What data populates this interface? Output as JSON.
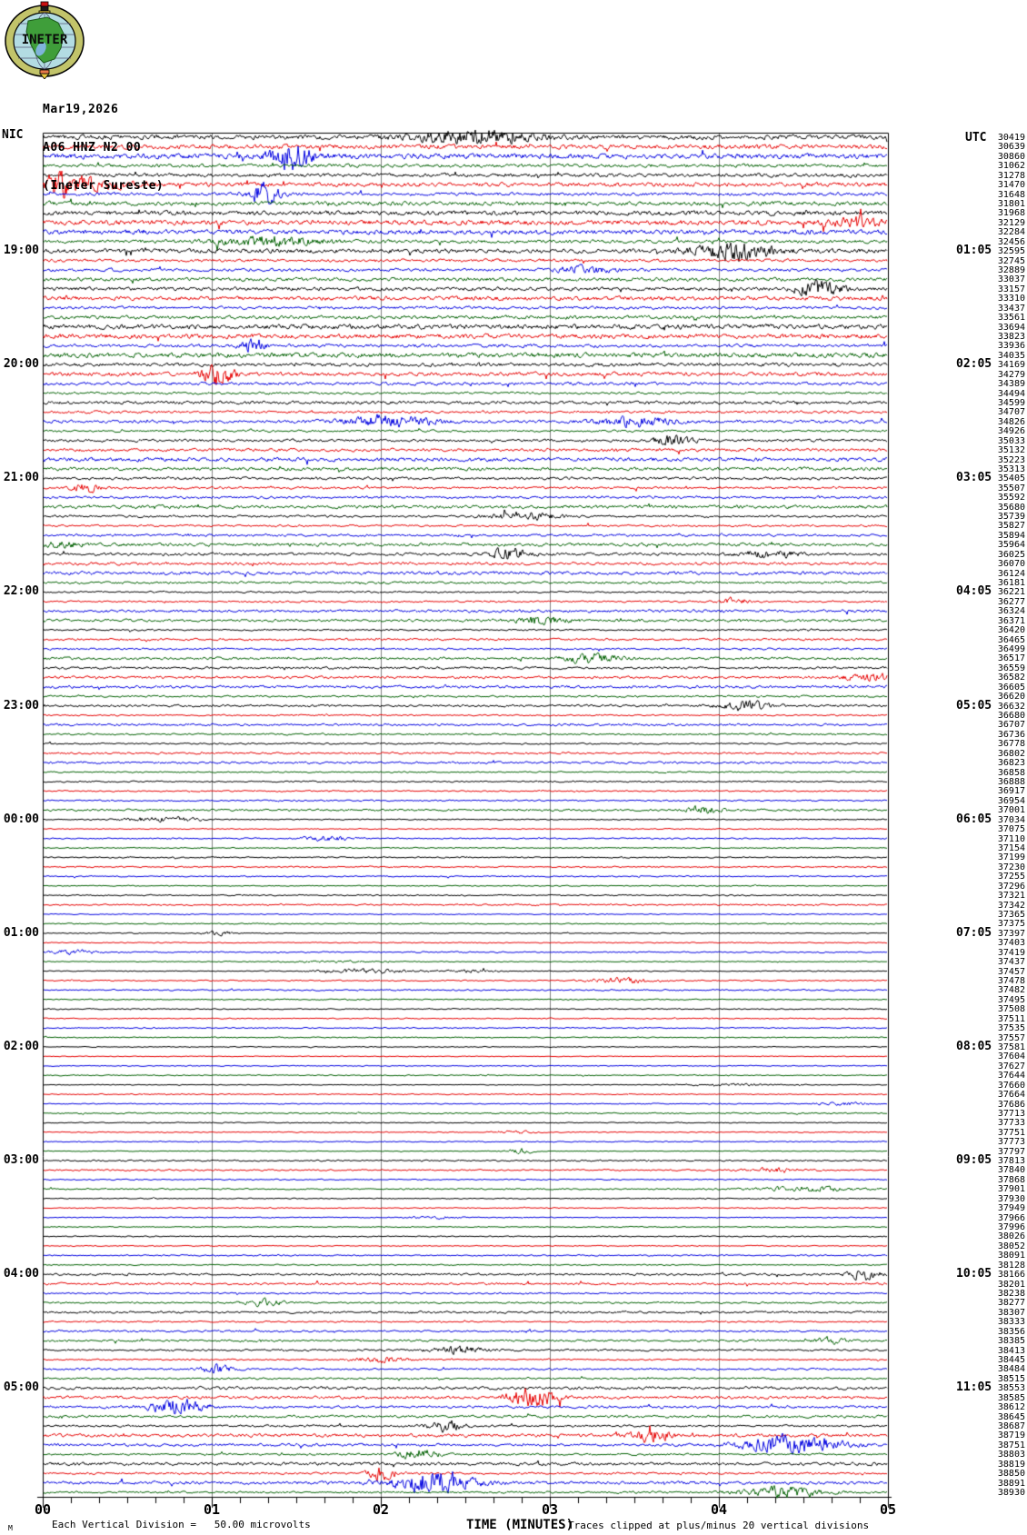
{
  "logo": {
    "label": "INETER",
    "ring_color": "#c2c46a",
    "globe_color": "#b3dce3",
    "land_color": "#3f9e3a",
    "lake_color": "#7fb4da",
    "flag_red": "#cc1111",
    "flag_black": "#1a1a1a",
    "pin_color": "#e8c83c"
  },
  "header": {
    "date": "Mar19,2026",
    "station": "A06 HNZ N2 00",
    "network": "(Ineter Sureste)"
  },
  "axes": {
    "left_header": "NIC",
    "right_header": "UTC"
  },
  "chart_data": {
    "type": "line",
    "subtype": "helicorder-seismogram",
    "title": "A06 HNZ N2 00 (Ineter Sureste) Mar19,2026",
    "xlabel": "TIME (MINUTES)",
    "x_ticks": [
      "00",
      "01",
      "02",
      "03",
      "04",
      "05"
    ],
    "x_range_minutes": [
      0,
      5
    ],
    "minor_ticks_per_division": 5,
    "minutes_per_trace": 5,
    "traces_per_hour": 12,
    "trace_count": 144,
    "trace_color_cycle": [
      "#000000",
      "#e60000",
      "#0000e0",
      "#006000"
    ],
    "grid_color": "#808080",
    "grid_minutes": [
      1,
      2,
      3,
      4
    ],
    "hour_label_first_row": 13,
    "hour_label_step": 12,
    "left_time_labels": [
      "19:00",
      "20:00",
      "21:00",
      "22:00",
      "23:00",
      "00:00",
      "01:00",
      "02:00",
      "03:00",
      "04:00",
      "05:00"
    ],
    "right_time_labels": [
      "01:05",
      "02:05",
      "03:05",
      "04:05",
      "05:05",
      "06:05",
      "07:05",
      "08:05",
      "09:05",
      "10:05",
      "11:05"
    ],
    "trace_values": [
      30419,
      30639,
      30860,
      31062,
      31278,
      31470,
      31648,
      31801,
      31968,
      32129,
      32284,
      32456,
      32595,
      32745,
      32889,
      33037,
      33157,
      33310,
      33437,
      33561,
      33694,
      33823,
      33936,
      34035,
      34169,
      34279,
      34389,
      34494,
      34599,
      34707,
      34826,
      34926,
      35033,
      35132,
      35223,
      35313,
      35405,
      35507,
      35592,
      35680,
      35739,
      35827,
      35894,
      35964,
      36025,
      36070,
      36124,
      36181,
      36221,
      36277,
      36324,
      36371,
      36420,
      36465,
      36499,
      36517,
      36559,
      36582,
      36605,
      36620,
      36632,
      36680,
      36707,
      36736,
      36778,
      36802,
      36823,
      36858,
      36888,
      36917,
      36954,
      37001,
      37034,
      37075,
      37110,
      37154,
      37199,
      37230,
      37255,
      37296,
      37321,
      37342,
      37365,
      37375,
      37397,
      37403,
      37419,
      37437,
      37457,
      37478,
      37482,
      37495,
      37508,
      37511,
      37535,
      37557,
      37581,
      37604,
      37627,
      37644,
      37660,
      37664,
      37686,
      37713,
      37733,
      37751,
      37773,
      37797,
      37813,
      37840,
      37868,
      37901,
      37930,
      37949,
      37966,
      37996,
      38026,
      38052,
      38091,
      38128,
      38166,
      38201,
      38238,
      38277,
      38307,
      38333,
      38356,
      38385,
      38413,
      38445,
      38484,
      38515,
      38553,
      38585,
      38612,
      38645,
      38687,
      38719,
      38751,
      38803,
      38819,
      38850,
      38891,
      38930
    ]
  },
  "footer": {
    "corner_mark": "M",
    "scale_note": "Each Vertical Division =   50.00 microvolts",
    "axis_title": "TIME (MINUTES)",
    "clip_note": "Traces clipped at plus/minus 20 vertical divisions"
  }
}
